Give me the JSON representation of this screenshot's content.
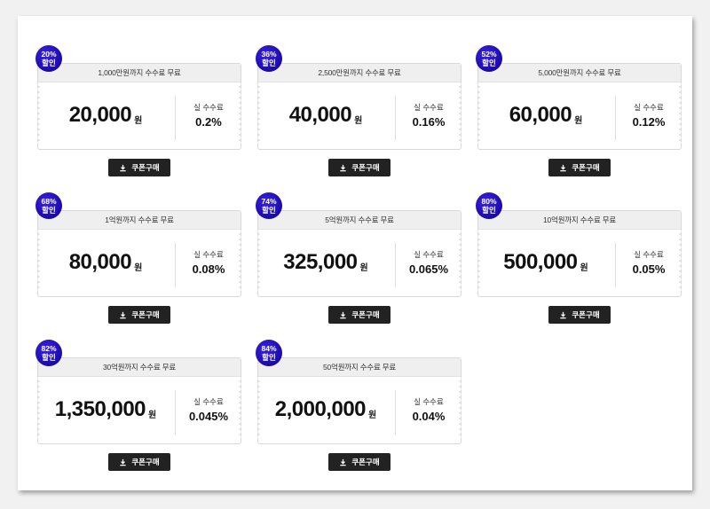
{
  "button_label": "쿠폰구매",
  "fee_label": "실 수수료",
  "currency_unit": "원",
  "accent_color": "#2a16c8",
  "coupons": [
    {
      "discount_pct": "20%",
      "discount_word": "할인",
      "limit": "1,000만원까지 수수료 무료",
      "price": "20,000",
      "fee": "0.2%"
    },
    {
      "discount_pct": "36%",
      "discount_word": "할인",
      "limit": "2,500만원까지 수수료 무료",
      "price": "40,000",
      "fee": "0.16%"
    },
    {
      "discount_pct": "52%",
      "discount_word": "할인",
      "limit": "5,000만원까지 수수료 무료",
      "price": "60,000",
      "fee": "0.12%"
    },
    {
      "discount_pct": "68%",
      "discount_word": "할인",
      "limit": "1억원까지 수수료 무료",
      "price": "80,000",
      "fee": "0.08%"
    },
    {
      "discount_pct": "74%",
      "discount_word": "할인",
      "limit": "5억원까지 수수료 무료",
      "price": "325,000",
      "fee": "0.065%"
    },
    {
      "discount_pct": "80%",
      "discount_word": "할인",
      "limit": "10억원까지 수수료 무료",
      "price": "500,000",
      "fee": "0.05%"
    },
    {
      "discount_pct": "82%",
      "discount_word": "할인",
      "limit": "30억원까지 수수료 무료",
      "price": "1,350,000",
      "fee": "0.045%"
    },
    {
      "discount_pct": "84%",
      "discount_word": "할인",
      "limit": "50억원까지 수수료 무료",
      "price": "2,000,000",
      "fee": "0.04%"
    }
  ]
}
